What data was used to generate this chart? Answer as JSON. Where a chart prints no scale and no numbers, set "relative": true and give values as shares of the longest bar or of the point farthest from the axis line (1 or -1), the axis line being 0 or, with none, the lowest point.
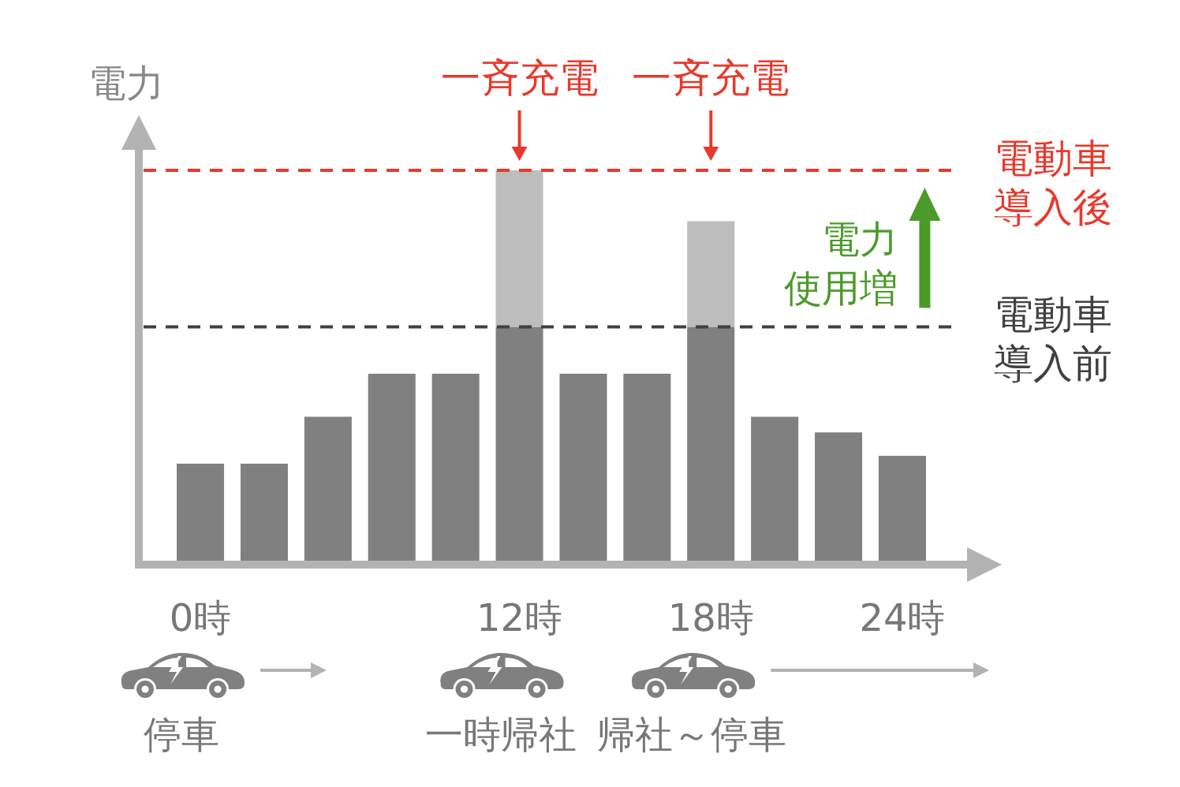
{
  "chart_data": {
    "type": "bar",
    "stacked": true,
    "relative": true,
    "ylabel": "電力",
    "categories": [
      "0時",
      null,
      null,
      null,
      null,
      "12時",
      null,
      null,
      "18時",
      null,
      null,
      "24時"
    ],
    "series": [
      {
        "color": "#808080",
        "values": [
          0.25,
          0.25,
          0.37,
          0.48,
          0.48,
          0.6,
          0.48,
          0.48,
          0.6,
          0.37,
          0.33,
          0.27
        ]
      },
      {
        "color": "#bdbdbd",
        "values": [
          null,
          null,
          null,
          null,
          null,
          0.4,
          null,
          null,
          0.27,
          null,
          null,
          null
        ]
      }
    ],
    "ref_lines": [
      {
        "axis": "y",
        "value": 1,
        "label": "電動車導入後",
        "color": "#e8392c",
        "line_style": "dashed"
      },
      {
        "axis": "y",
        "value": 0.6,
        "label": "電動車導入前",
        "color": "#404040",
        "line_style": "dashed"
      }
    ],
    "annotations": [
      {
        "text": "一斉充電",
        "x": "12時",
        "y": 1
      },
      {
        "text": "一斉充電",
        "x": "18時",
        "y": 1
      },
      "電力使用増",
      "停車",
      "一時帰社",
      "帰社～停車"
    ]
  }
}
